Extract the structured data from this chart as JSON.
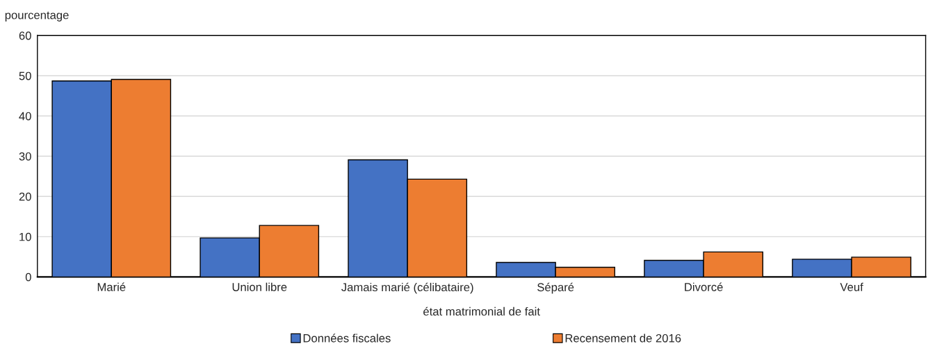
{
  "chart_data": {
    "type": "bar",
    "xlabel": "état matrimonial de fait",
    "ylabel": "pourcentage",
    "categories": [
      "Marié",
      "Union libre",
      "Jamais marié (célibataire)",
      "Séparé",
      "Divorcé",
      "Veuf"
    ],
    "series": [
      {
        "name": "Données fiscales",
        "color": "#4472c4",
        "values": [
          48.7,
          9.7,
          29.1,
          3.6,
          4.1,
          4.4
        ]
      },
      {
        "name": "Recensement de 2016",
        "color": "#ed7d31",
        "values": [
          49.1,
          12.8,
          24.3,
          2.4,
          6.2,
          4.9
        ]
      }
    ],
    "ylim": [
      0,
      60
    ],
    "yticks": [
      0,
      10,
      20,
      30,
      40,
      50,
      60
    ],
    "grid": "y",
    "legend": "bottom"
  }
}
